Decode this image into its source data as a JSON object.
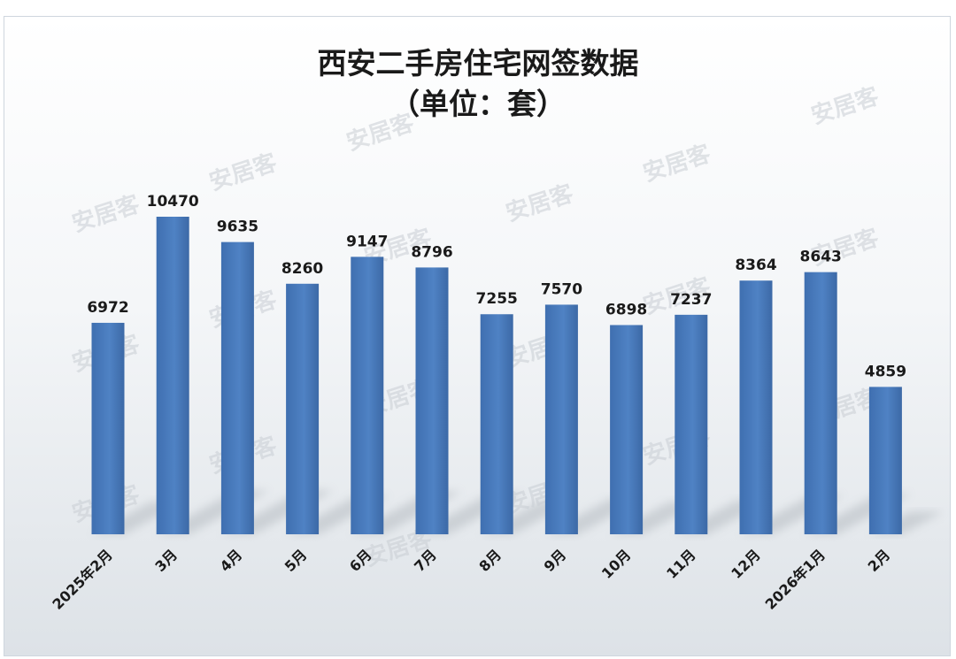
{
  "watermark": "安居客",
  "colors": {
    "bar": "#4a7cbf",
    "bar_dark": "#3d6aa6",
    "shadow": "#9aa1a8"
  },
  "chart_data": {
    "type": "bar",
    "title": "西安二手房住宅网签数据",
    "subtitle": "（单位：套）",
    "categories": [
      "2025年2月",
      "3月",
      "4月",
      "5月",
      "6月",
      "7月",
      "8月",
      "9月",
      "10月",
      "11月",
      "12月",
      "2026年1月",
      "2月"
    ],
    "series": [
      {
        "values": [
          6972,
          10470,
          9635,
          8260,
          9147,
          8796,
          7255,
          7570,
          6898,
          7237,
          8364,
          8643,
          4859
        ]
      }
    ],
    "ylim": [
      0,
      10470
    ],
    "grid": false,
    "legend": "none",
    "data_labels": true
  }
}
